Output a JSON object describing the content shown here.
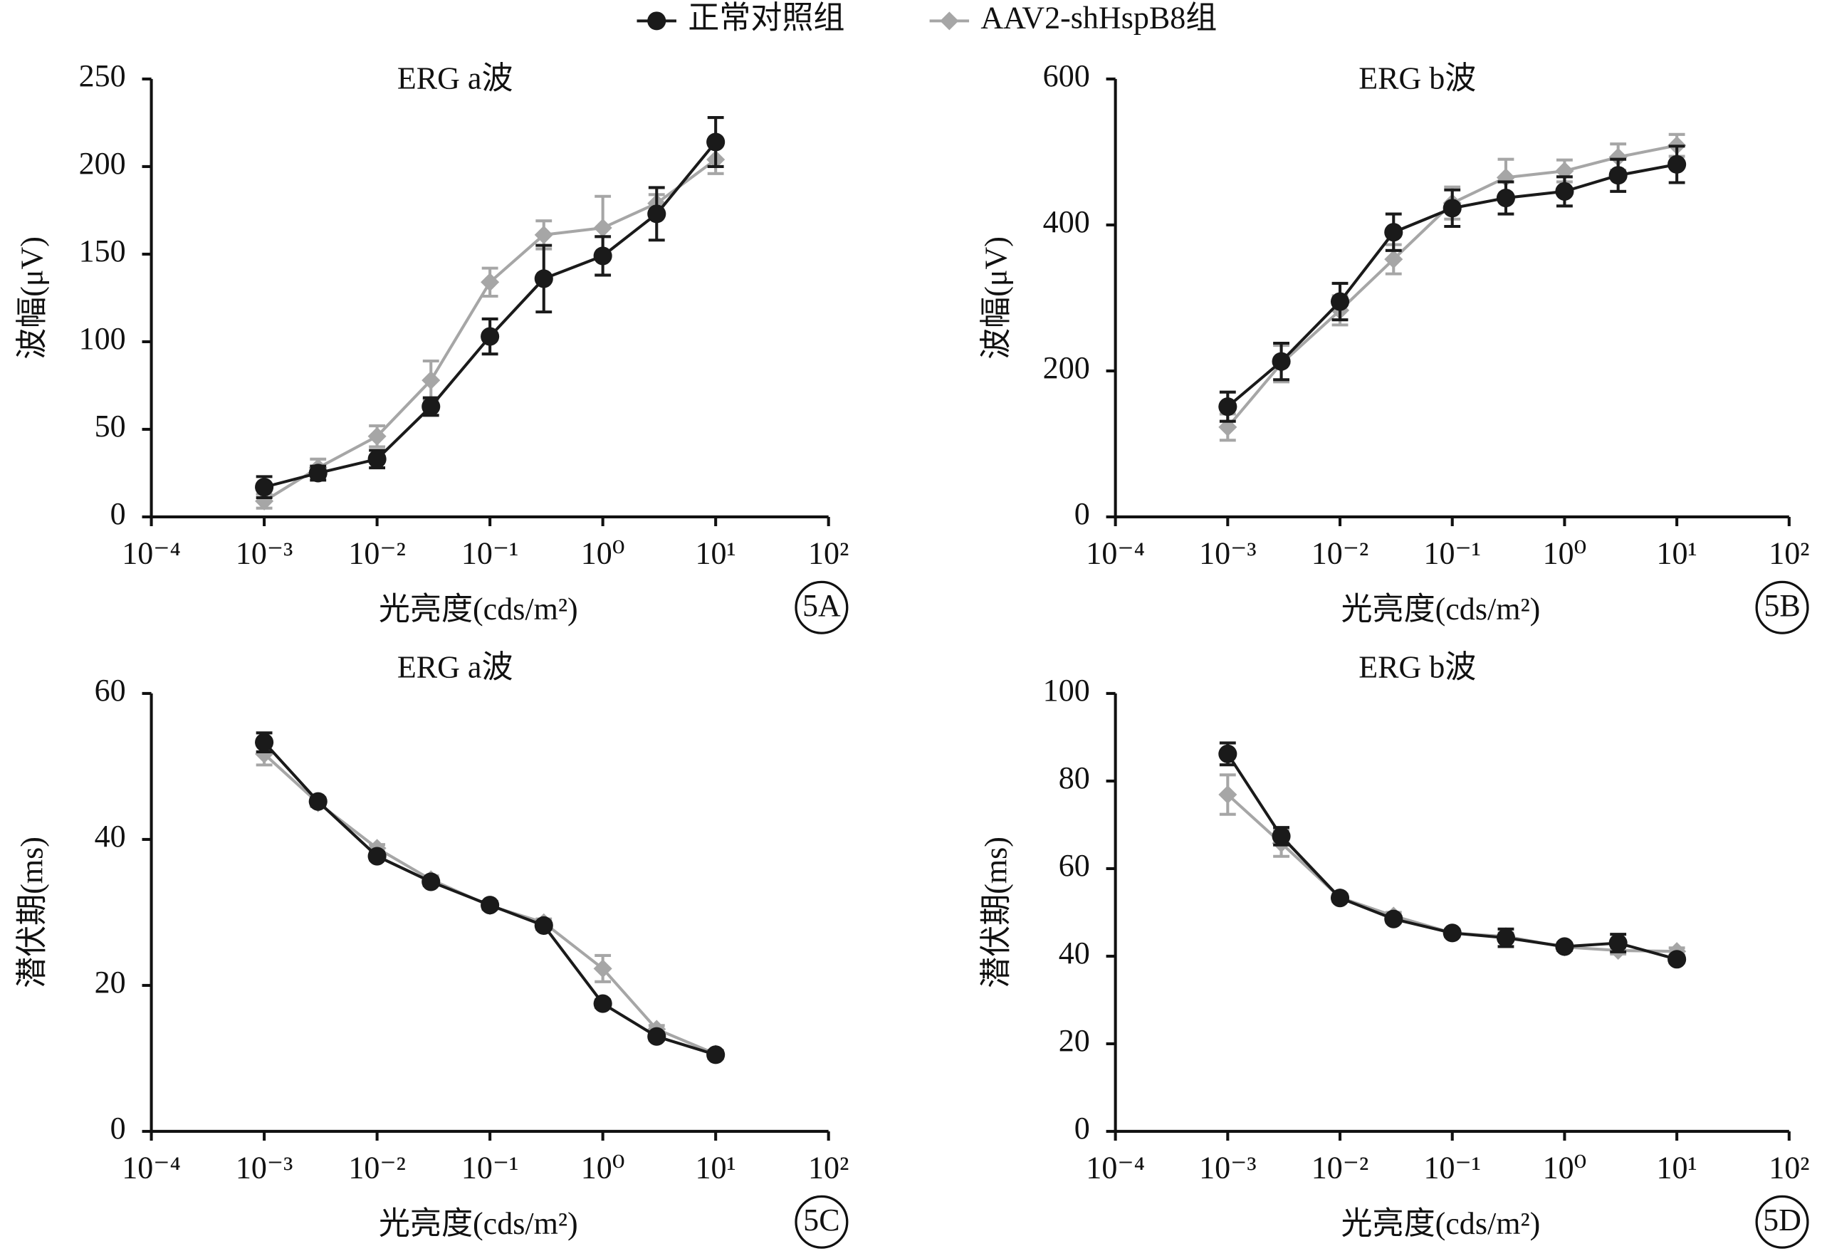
{
  "chart_data": [
    {
      "type": "line",
      "title": "ERG a波",
      "x_label": "光亮度(cds/m²)",
      "y_label": "波幅(μV)",
      "panel_label": "5A",
      "x": [
        0.001,
        0.003,
        0.01,
        0.03,
        0.1,
        0.3,
        1,
        3,
        10
      ],
      "xscale": "log",
      "xlim": [
        0.0001,
        100
      ],
      "xticks": [
        {
          "value": 0.0001,
          "label": "10⁻⁴"
        },
        {
          "value": 0.001,
          "label": "10⁻³"
        },
        {
          "value": 0.01,
          "label": "10⁻²"
        },
        {
          "value": 0.1,
          "label": "10⁻¹"
        },
        {
          "value": 1,
          "label": "10⁰"
        },
        {
          "value": 10,
          "label": "10¹"
        },
        {
          "value": 100,
          "label": "10²"
        }
      ],
      "ylim": [
        0,
        250
      ],
      "yticks": [
        0,
        50,
        100,
        150,
        200,
        250
      ],
      "series": [
        {
          "name": "正常对照组",
          "color": "#1a1a1a",
          "marker": "circle",
          "values": [
            17,
            25,
            33,
            63,
            103,
            136,
            149,
            173,
            214
          ],
          "errors": [
            6,
            4,
            5,
            5,
            10,
            19,
            11,
            15,
            14
          ]
        },
        {
          "name": "AAV2-shHspB8组",
          "color": "#a6a6a6",
          "marker": "diamond",
          "values": [
            9,
            28,
            46,
            78,
            134,
            161,
            165,
            179,
            204
          ],
          "errors": [
            4,
            5,
            6,
            11,
            8,
            8,
            18,
            5,
            8
          ]
        }
      ]
    },
    {
      "type": "line",
      "title": "ERG b波",
      "x_label": "光亮度(cds/m²)",
      "y_label": "波幅(μV)",
      "panel_label": "5B",
      "x": [
        0.001,
        0.003,
        0.01,
        0.03,
        0.1,
        0.3,
        1,
        3,
        10
      ],
      "xscale": "log",
      "xlim": [
        0.0001,
        100
      ],
      "xticks": [
        {
          "value": 0.0001,
          "label": "10⁻⁴"
        },
        {
          "value": 0.001,
          "label": "10⁻³"
        },
        {
          "value": 0.01,
          "label": "10⁻²"
        },
        {
          "value": 0.1,
          "label": "10⁻¹"
        },
        {
          "value": 1,
          "label": "10⁰"
        },
        {
          "value": 10,
          "label": "10¹"
        },
        {
          "value": 100,
          "label": "10²"
        }
      ],
      "ylim": [
        0,
        600
      ],
      "yticks": [
        0,
        200,
        400,
        600
      ],
      "series": [
        {
          "name": "正常对照组",
          "color": "#1a1a1a",
          "marker": "circle",
          "values": [
            151,
            213,
            295,
            390,
            423,
            437,
            446,
            468,
            483
          ],
          "errors": [
            20,
            25,
            25,
            25,
            25,
            22,
            20,
            22,
            25
          ]
        },
        {
          "name": "AAV2-shHspB8组",
          "color": "#a6a6a6",
          "marker": "diamond",
          "values": [
            123,
            210,
            283,
            353,
            430,
            465,
            474,
            493,
            509
          ],
          "errors": [
            18,
            25,
            20,
            20,
            22,
            25,
            15,
            18,
            15
          ]
        }
      ]
    },
    {
      "type": "line",
      "title": "ERG a波",
      "x_label": "光亮度(cds/m²)",
      "y_label": "潜伏期(ms)",
      "panel_label": "5C",
      "x": [
        0.001,
        0.003,
        0.01,
        0.03,
        0.1,
        0.3,
        1,
        3,
        10
      ],
      "xscale": "log",
      "xlim": [
        0.0001,
        100
      ],
      "xticks": [
        {
          "value": 0.0001,
          "label": "10⁻⁴"
        },
        {
          "value": 0.001,
          "label": "10⁻³"
        },
        {
          "value": 0.01,
          "label": "10⁻²"
        },
        {
          "value": 0.1,
          "label": "10⁻¹"
        },
        {
          "value": 1,
          "label": "10⁰"
        },
        {
          "value": 10,
          "label": "10¹"
        },
        {
          "value": 100,
          "label": "10²"
        }
      ],
      "ylim": [
        0,
        60
      ],
      "yticks": [
        0,
        20,
        40,
        60
      ],
      "series": [
        {
          "name": "正常对照组",
          "color": "#1a1a1a",
          "marker": "circle",
          "values": [
            53.3,
            45.2,
            37.7,
            34.2,
            31,
            28.2,
            17.5,
            13,
            10.5
          ],
          "errors": [
            1.3,
            0.5,
            0.5,
            0.5,
            0.5,
            0.5,
            0.5,
            0.5,
            0.5
          ]
        },
        {
          "name": "AAV2-shHspB8组",
          "color": "#a6a6a6",
          "marker": "diamond",
          "values": [
            51.7,
            45,
            38.8,
            34.5,
            30.9,
            28.6,
            22.3,
            14,
            10.6
          ],
          "errors": [
            1.5,
            0.5,
            0.5,
            0.5,
            0.5,
            0.5,
            1.8,
            0.5,
            0.5
          ]
        }
      ]
    },
    {
      "type": "line",
      "title": "ERG b波",
      "x_label": "光亮度(cds/m²)",
      "y_label": "潜伏期(ms)",
      "panel_label": "5D",
      "x": [
        0.001,
        0.003,
        0.01,
        0.03,
        0.1,
        0.3,
        1,
        3,
        10
      ],
      "xscale": "log",
      "xlim": [
        0.0001,
        100
      ],
      "xticks": [
        {
          "value": 0.0001,
          "label": "10⁻⁴"
        },
        {
          "value": 0.001,
          "label": "10⁻³"
        },
        {
          "value": 0.01,
          "label": "10⁻²"
        },
        {
          "value": 0.1,
          "label": "10⁻¹"
        },
        {
          "value": 1,
          "label": "10⁰"
        },
        {
          "value": 10,
          "label": "10¹"
        },
        {
          "value": 100,
          "label": "10²"
        }
      ],
      "ylim": [
        0,
        100
      ],
      "yticks": [
        0,
        20,
        40,
        60,
        80,
        100
      ],
      "series": [
        {
          "name": "正常对照组",
          "color": "#1a1a1a",
          "marker": "circle",
          "values": [
            86.2,
            67.4,
            53.3,
            48.5,
            45.3,
            44.2,
            42.2,
            43,
            39.3
          ],
          "errors": [
            2.5,
            2,
            0.8,
            0.8,
            0.8,
            2,
            0.8,
            2,
            0.8
          ]
        },
        {
          "name": "AAV2-shHspB8组",
          "color": "#a6a6a6",
          "marker": "diamond",
          "values": [
            76.9,
            65.8,
            53.4,
            49.2,
            45.3,
            44.5,
            42.1,
            41.3,
            41.1
          ],
          "errors": [
            4.5,
            3,
            0.8,
            0.8,
            0.8,
            0.8,
            0.8,
            0.8,
            0.8
          ]
        }
      ]
    }
  ]
}
